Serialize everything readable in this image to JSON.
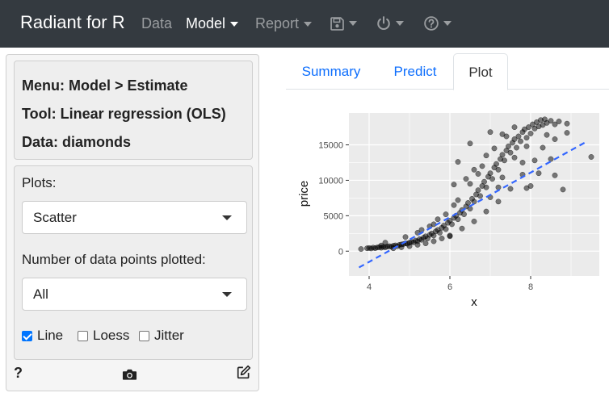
{
  "navbar": {
    "brand": "Radiant for R",
    "items": [
      {
        "label": "Data",
        "active": false
      },
      {
        "label": "Model",
        "active": true
      },
      {
        "label": "Report",
        "active": false
      }
    ]
  },
  "sidebar": {
    "info": {
      "menu": "Menu: Model > Estimate",
      "tool": "Tool: Linear regression (OLS)",
      "data": "Data: diamonds"
    },
    "plots_label": "Plots:",
    "plots_value": "Scatter",
    "npoints_label": "Number of data points plotted:",
    "npoints_value": "All",
    "checkboxes": [
      {
        "label": "Line",
        "checked": true
      },
      {
        "label": "Loess",
        "checked": false
      },
      {
        "label": "Jitter",
        "checked": false
      }
    ],
    "footer": {
      "help": "?"
    }
  },
  "tabs": [
    {
      "label": "Summary",
      "active": false
    },
    {
      "label": "Predict",
      "active": false
    },
    {
      "label": "Plot",
      "active": true
    }
  ],
  "chart_data": {
    "type": "scatter",
    "xlabel": "x",
    "ylabel": "price",
    "xlim": [
      3.5,
      9.7
    ],
    "ylim": [
      -3500,
      19500
    ],
    "x_ticks": [
      4,
      6,
      8
    ],
    "y_ticks": [
      0,
      5000,
      10000,
      15000
    ],
    "x_tick_labels": [
      "4",
      "6",
      "8"
    ],
    "y_tick_labels": [
      "0",
      "5000",
      "10000",
      "15000"
    ],
    "grid": true,
    "panel_background": "#ebebeb",
    "point_color": "#000000",
    "point_opacity": 0.5,
    "line": {
      "x": [
        3.75,
        9.4
      ],
      "y": [
        -2300,
        15500
      ],
      "color": "#3366ff",
      "style": "dashed"
    },
    "points": [
      [
        3.8,
        300
      ],
      [
        3.95,
        400
      ],
      [
        4.0,
        450
      ],
      [
        4.05,
        380
      ],
      [
        4.1,
        500
      ],
      [
        4.15,
        420
      ],
      [
        4.2,
        520
      ],
      [
        4.25,
        560
      ],
      [
        4.3,
        480
      ],
      [
        4.35,
        600
      ],
      [
        4.4,
        540
      ],
      [
        4.45,
        650
      ],
      [
        4.5,
        700
      ],
      [
        4.55,
        620
      ],
      [
        4.6,
        760
      ],
      [
        4.65,
        820
      ],
      [
        4.7,
        700
      ],
      [
        4.75,
        900
      ],
      [
        4.8,
        950
      ],
      [
        4.85,
        1000
      ],
      [
        4.9,
        1100
      ],
      [
        4.95,
        1050
      ],
      [
        5.0,
        1200
      ],
      [
        5.05,
        1300
      ],
      [
        5.1,
        1250
      ],
      [
        5.15,
        1500
      ],
      [
        5.2,
        1400
      ],
      [
        5.25,
        1700
      ],
      [
        5.3,
        1600
      ],
      [
        5.35,
        1900
      ],
      [
        5.4,
        2100
      ],
      [
        5.45,
        1800
      ],
      [
        5.5,
        2300
      ],
      [
        5.55,
        2500
      ],
      [
        5.6,
        2200
      ],
      [
        5.65,
        2800
      ],
      [
        5.7,
        3000
      ],
      [
        5.75,
        2600
      ],
      [
        5.8,
        3300
      ],
      [
        5.85,
        3600
      ],
      [
        5.9,
        3100
      ],
      [
        5.95,
        4000
      ],
      [
        6.0,
        4300
      ],
      [
        6.05,
        3800
      ],
      [
        6.1,
        4700
      ],
      [
        6.15,
        5000
      ],
      [
        6.2,
        4500
      ],
      [
        6.25,
        5400
      ],
      [
        6.3,
        5800
      ],
      [
        6.35,
        5200
      ],
      [
        6.4,
        6300
      ],
      [
        6.45,
        6800
      ],
      [
        6.5,
        6000
      ],
      [
        6.55,
        7400
      ],
      [
        6.6,
        7000
      ],
      [
        6.65,
        8000
      ],
      [
        6.7,
        8600
      ],
      [
        6.75,
        7800
      ],
      [
        6.8,
        9200
      ],
      [
        6.85,
        9800
      ],
      [
        6.9,
        9000
      ],
      [
        6.95,
        10500
      ],
      [
        7.0,
        11000
      ],
      [
        7.05,
        10200
      ],
      [
        7.1,
        11800
      ],
      [
        7.15,
        12300
      ],
      [
        7.2,
        11500
      ],
      [
        7.25,
        13000
      ],
      [
        7.3,
        13600
      ],
      [
        7.35,
        12800
      ],
      [
        7.4,
        14200
      ],
      [
        7.45,
        14800
      ],
      [
        7.5,
        13900
      ],
      [
        7.55,
        15300
      ],
      [
        7.6,
        15800
      ],
      [
        7.65,
        14600
      ],
      [
        7.7,
        16200
      ],
      [
        7.75,
        15500
      ],
      [
        7.8,
        16800
      ],
      [
        7.85,
        17200
      ],
      [
        7.9,
        16000
      ],
      [
        7.95,
        17500
      ],
      [
        8.0,
        16600
      ],
      [
        8.05,
        17900
      ],
      [
        8.1,
        17300
      ],
      [
        8.15,
        18200
      ],
      [
        8.2,
        17600
      ],
      [
        8.25,
        18500
      ],
      [
        8.3,
        17800
      ],
      [
        8.35,
        18600
      ],
      [
        8.4,
        18100
      ],
      [
        8.5,
        18400
      ],
      [
        8.6,
        17900
      ],
      [
        8.7,
        18300
      ],
      [
        5.2,
        2600
      ],
      [
        5.6,
        3800
      ],
      [
        5.9,
        5200
      ],
      [
        6.2,
        7200
      ],
      [
        6.5,
        9500
      ],
      [
        6.8,
        12000
      ],
      [
        7.1,
        14500
      ],
      [
        7.3,
        16500
      ],
      [
        6.0,
        2200
      ],
      [
        6.3,
        3200
      ],
      [
        6.6,
        4200
      ],
      [
        6.9,
        5600
      ],
      [
        7.2,
        7000
      ],
      [
        7.5,
        8800
      ],
      [
        7.8,
        10800
      ],
      [
        8.1,
        12800
      ],
      [
        4.6,
        400
      ],
      [
        4.8,
        550
      ],
      [
        5.0,
        700
      ],
      [
        5.2,
        900
      ],
      [
        5.4,
        1100
      ],
      [
        5.6,
        1400
      ],
      [
        5.8,
        1800
      ],
      [
        6.0,
        2100
      ],
      [
        6.4,
        10200
      ],
      [
        6.6,
        11500
      ],
      [
        6.9,
        13500
      ],
      [
        7.4,
        16200
      ],
      [
        7.6,
        17500
      ],
      [
        7.2,
        9000
      ],
      [
        7.0,
        7600
      ],
      [
        6.5,
        15200
      ],
      [
        7.0,
        16800
      ],
      [
        7.8,
        12500
      ],
      [
        8.3,
        14600
      ],
      [
        8.6,
        15800
      ],
      [
        8.9,
        18000
      ],
      [
        8.5,
        13000
      ],
      [
        8.2,
        11000
      ],
      [
        7.9,
        14800
      ],
      [
        7.6,
        13200
      ],
      [
        8.4,
        16400
      ],
      [
        7.3,
        10400
      ],
      [
        6.2,
        12600
      ],
      [
        6.1,
        9400
      ],
      [
        8.0,
        9200
      ],
      [
        8.6,
        10700
      ],
      [
        9.5,
        13300
      ],
      [
        8.9,
        16700
      ],
      [
        8.8,
        8700
      ],
      [
        7.9,
        8900
      ],
      [
        4.3,
        800
      ],
      [
        4.9,
        2000
      ],
      [
        5.3,
        3000
      ],
      [
        5.7,
        4500
      ],
      [
        5.5,
        3500
      ],
      [
        6.1,
        6500
      ],
      [
        6.7,
        10900
      ],
      [
        4.4,
        1200
      ]
    ]
  }
}
